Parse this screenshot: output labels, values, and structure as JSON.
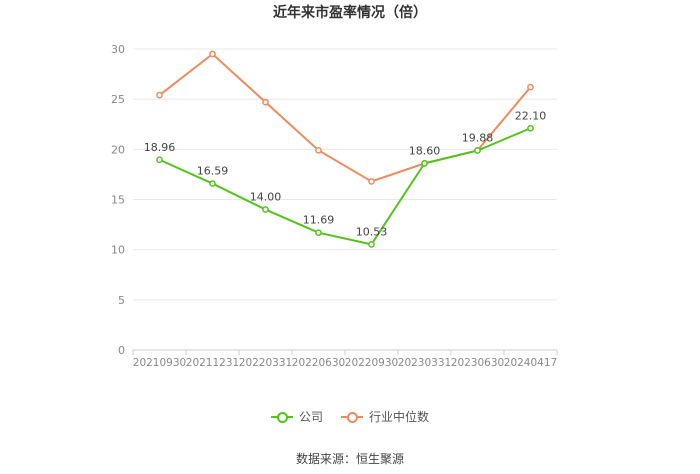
{
  "chart_data": {
    "type": "line",
    "title": "近年来市盈率情况（倍）",
    "categories": [
      "20210930",
      "20211231",
      "20220331",
      "20220630",
      "20220930",
      "20230331",
      "20230630",
      "20240417"
    ],
    "ylim": [
      0,
      30
    ],
    "yticks": [
      0,
      5,
      10,
      15,
      20,
      25,
      30
    ],
    "grid": true,
    "legend_position": "bottom",
    "series": [
      {
        "name": "公司",
        "color": "#52c41a",
        "values": [
          18.96,
          16.59,
          14.0,
          11.69,
          10.53,
          18.6,
          19.88,
          22.1
        ],
        "labels": [
          "18.96",
          "16.59",
          "14.00",
          "11.69",
          "10.53",
          "18.60",
          "19.88",
          "22.10"
        ]
      },
      {
        "name": "行业中位数",
        "color": "#f08a5d",
        "values": [
          25.4,
          29.5,
          24.7,
          19.9,
          16.8,
          18.6,
          19.9,
          26.2
        ]
      }
    ]
  },
  "source": "数据来源：恒生聚源"
}
